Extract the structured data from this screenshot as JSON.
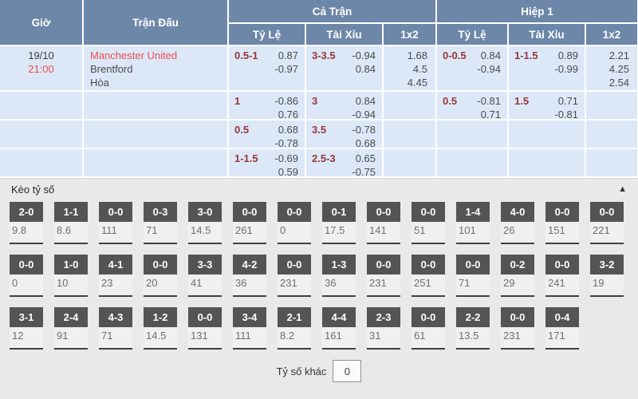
{
  "colors": {
    "header_bg": "#6d87a9",
    "row_bg": "#dce8f8",
    "accent_red": "#ee4c4e",
    "handicap_maroon": "#983637",
    "score_box_bg": "#545454",
    "section_bg": "#e9e9e9"
  },
  "table": {
    "headers": {
      "time": "Giờ",
      "match": "Trận Đấu",
      "full_match": "Cả Trận",
      "first_half": "Hiệp 1",
      "handicap": "Tỷ Lệ",
      "over_under": "Tài Xỉu",
      "oxt": "1x2"
    },
    "rows": [
      {
        "date": "19/10",
        "kickoff": "21:00",
        "home": "Manchester United",
        "away": "Brentford",
        "draw": "Hòa",
        "ft_hc_line": "0.5-1",
        "ft_hc_o1": "0.87",
        "ft_hc_o2": "-0.97",
        "ft_ou_line": "3-3.5",
        "ft_ou_o1": "-0.94",
        "ft_ou_o2": "0.84",
        "ft_1": "1.68",
        "ft_x": "4.5",
        "ft_2": "4.45",
        "h1_hc_line": "0-0.5",
        "h1_hc_o1": "0.84",
        "h1_hc_o2": "-0.94",
        "h1_ou_line": "1-1.5",
        "h1_ou_o1": "0.89",
        "h1_ou_o2": "-0.99",
        "h1_1": "2.21",
        "h1_x": "4.25",
        "h1_2": "2.54"
      },
      {
        "ft_hc_line": "1",
        "ft_hc_o1": "-0.86",
        "ft_hc_o2": "0.76",
        "ft_ou_line": "3",
        "ft_ou_o1": "0.84",
        "ft_ou_o2": "-0.94",
        "h1_hc_line": "0.5",
        "h1_hc_o1": "-0.81",
        "h1_hc_o2": "0.71",
        "h1_ou_line": "1.5",
        "h1_ou_o1": "0.71",
        "h1_ou_o2": "-0.81"
      },
      {
        "ft_hc_line": "0.5",
        "ft_hc_o1": "0.68",
        "ft_hc_o2": "-0.78",
        "ft_ou_line": "3.5",
        "ft_ou_o1": "-0.78",
        "ft_ou_o2": "0.68"
      },
      {
        "ft_hc_line": "1-1.5",
        "ft_hc_o1": "-0.69",
        "ft_hc_o2": "0.59",
        "ft_ou_line": "2.5-3",
        "ft_ou_o1": "0.65",
        "ft_ou_o2": "-0.75"
      }
    ]
  },
  "score_section": {
    "title": "Kèo tỷ số",
    "collapse_icon": "▲",
    "rows": [
      [
        {
          "score": "2-0",
          "odds": "9.8"
        },
        {
          "score": "1-1",
          "odds": "8.6"
        },
        {
          "score": "0-0",
          "odds": "111"
        },
        {
          "score": "0-3",
          "odds": "71"
        },
        {
          "score": "3-0",
          "odds": "14.5"
        },
        {
          "score": "0-0",
          "odds": "261"
        },
        {
          "score": "0-0",
          "odds": "0"
        },
        {
          "score": "0-1",
          "odds": "17.5"
        },
        {
          "score": "0-0",
          "odds": "141"
        },
        {
          "score": "0-0",
          "odds": "51"
        },
        {
          "score": "1-4",
          "odds": "101"
        },
        {
          "score": "4-0",
          "odds": "26"
        },
        {
          "score": "0-0",
          "odds": "151"
        },
        {
          "score": "0-0",
          "odds": "221"
        }
      ],
      [
        {
          "score": "0-0",
          "odds": "0"
        },
        {
          "score": "1-0",
          "odds": "10"
        },
        {
          "score": "4-1",
          "odds": "23"
        },
        {
          "score": "0-0",
          "odds": "20"
        },
        {
          "score": "3-3",
          "odds": "41"
        },
        {
          "score": "4-2",
          "odds": "36"
        },
        {
          "score": "0-0",
          "odds": "231"
        },
        {
          "score": "1-3",
          "odds": "36"
        },
        {
          "score": "0-0",
          "odds": "231"
        },
        {
          "score": "0-0",
          "odds": "251"
        },
        {
          "score": "0-0",
          "odds": "71"
        },
        {
          "score": "0-2",
          "odds": "29"
        },
        {
          "score": "0-0",
          "odds": "241"
        },
        {
          "score": "3-2",
          "odds": "19"
        }
      ],
      [
        {
          "score": "3-1",
          "odds": "12"
        },
        {
          "score": "2-4",
          "odds": "91"
        },
        {
          "score": "4-3",
          "odds": "71"
        },
        {
          "score": "1-2",
          "odds": "14.5"
        },
        {
          "score": "0-0",
          "odds": "131"
        },
        {
          "score": "3-4",
          "odds": "111"
        },
        {
          "score": "2-1",
          "odds": "8.2"
        },
        {
          "score": "4-4",
          "odds": "161"
        },
        {
          "score": "2-3",
          "odds": "31"
        },
        {
          "score": "0-0",
          "odds": "61"
        },
        {
          "score": "2-2",
          "odds": "13.5"
        },
        {
          "score": "0-0",
          "odds": "231"
        },
        {
          "score": "0-4",
          "odds": "171"
        }
      ]
    ],
    "other_label": "Tỷ số khác",
    "other_value": "0"
  }
}
